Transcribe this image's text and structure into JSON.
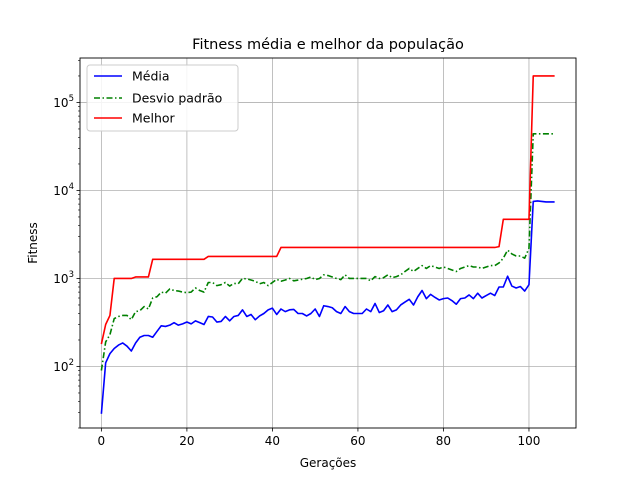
{
  "chart_data": {
    "type": "line",
    "title": "Fitness média e melhor da população",
    "xlabel": "Gerações",
    "ylabel": "Fitness",
    "xlim": [
      -5,
      111
    ],
    "ylim": [
      20,
      320000
    ],
    "yscale": "log",
    "grid": true,
    "legend_position": "top-left",
    "x_ticks": [
      0,
      20,
      40,
      60,
      80,
      100
    ],
    "y_ticks": [
      {
        "value": 100,
        "base": "10",
        "exp": "2"
      },
      {
        "value": 1000,
        "base": "10",
        "exp": "3"
      },
      {
        "value": 10000,
        "base": "10",
        "exp": "4"
      },
      {
        "value": 100000,
        "base": "10",
        "exp": "5"
      }
    ],
    "series": [
      {
        "name": "Média",
        "color": "#0000ff",
        "style": "solid",
        "points": [
          [
            0,
            29
          ],
          [
            1,
            110
          ],
          [
            2,
            140
          ],
          [
            3,
            160
          ],
          [
            4,
            175
          ],
          [
            5,
            185
          ],
          [
            6,
            170
          ],
          [
            7,
            150
          ],
          [
            8,
            185
          ],
          [
            9,
            215
          ],
          [
            10,
            225
          ],
          [
            11,
            225
          ],
          [
            12,
            215
          ],
          [
            13,
            250
          ],
          [
            14,
            290
          ],
          [
            15,
            285
          ],
          [
            16,
            295
          ],
          [
            17,
            315
          ],
          [
            18,
            295
          ],
          [
            19,
            305
          ],
          [
            20,
            320
          ],
          [
            21,
            305
          ],
          [
            22,
            330
          ],
          [
            23,
            315
          ],
          [
            24,
            300
          ],
          [
            25,
            370
          ],
          [
            26,
            365
          ],
          [
            27,
            320
          ],
          [
            28,
            325
          ],
          [
            29,
            370
          ],
          [
            30,
            330
          ],
          [
            31,
            370
          ],
          [
            32,
            380
          ],
          [
            33,
            440
          ],
          [
            34,
            370
          ],
          [
            35,
            390
          ],
          [
            36,
            340
          ],
          [
            37,
            375
          ],
          [
            38,
            400
          ],
          [
            39,
            440
          ],
          [
            40,
            460
          ],
          [
            41,
            390
          ],
          [
            42,
            450
          ],
          [
            43,
            420
          ],
          [
            44,
            440
          ],
          [
            45,
            445
          ],
          [
            46,
            400
          ],
          [
            47,
            400
          ],
          [
            48,
            375
          ],
          [
            49,
            400
          ],
          [
            50,
            450
          ],
          [
            51,
            370
          ],
          [
            52,
            490
          ],
          [
            53,
            480
          ],
          [
            54,
            465
          ],
          [
            55,
            420
          ],
          [
            56,
            400
          ],
          [
            57,
            480
          ],
          [
            58,
            420
          ],
          [
            59,
            400
          ],
          [
            60,
            400
          ],
          [
            61,
            400
          ],
          [
            62,
            450
          ],
          [
            63,
            420
          ],
          [
            64,
            520
          ],
          [
            65,
            410
          ],
          [
            66,
            430
          ],
          [
            67,
            500
          ],
          [
            68,
            420
          ],
          [
            69,
            440
          ],
          [
            70,
            500
          ],
          [
            71,
            540
          ],
          [
            72,
            580
          ],
          [
            73,
            500
          ],
          [
            74,
            620
          ],
          [
            75,
            730
          ],
          [
            76,
            590
          ],
          [
            77,
            660
          ],
          [
            78,
            610
          ],
          [
            79,
            570
          ],
          [
            80,
            590
          ],
          [
            81,
            600
          ],
          [
            82,
            560
          ],
          [
            83,
            510
          ],
          [
            84,
            590
          ],
          [
            85,
            600
          ],
          [
            86,
            650
          ],
          [
            87,
            590
          ],
          [
            88,
            680
          ],
          [
            89,
            600
          ],
          [
            90,
            640
          ],
          [
            91,
            680
          ],
          [
            92,
            640
          ],
          [
            93,
            800
          ],
          [
            94,
            800
          ],
          [
            95,
            1060
          ],
          [
            96,
            820
          ],
          [
            97,
            780
          ],
          [
            98,
            810
          ],
          [
            99,
            720
          ],
          [
            100,
            850
          ],
          [
            101,
            7500
          ],
          [
            102,
            7600
          ],
          [
            103,
            7500
          ],
          [
            104,
            7400
          ],
          [
            105,
            7400
          ],
          [
            106,
            7400
          ]
        ]
      },
      {
        "name": "Desvio padrão",
        "color": "#008000",
        "style": "dashdot",
        "points": [
          [
            0,
            90
          ],
          [
            1,
            190
          ],
          [
            2,
            230
          ],
          [
            3,
            350
          ],
          [
            4,
            370
          ],
          [
            5,
            380
          ],
          [
            6,
            380
          ],
          [
            7,
            340
          ],
          [
            8,
            420
          ],
          [
            9,
            430
          ],
          [
            10,
            480
          ],
          [
            11,
            450
          ],
          [
            12,
            600
          ],
          [
            13,
            620
          ],
          [
            14,
            700
          ],
          [
            15,
            680
          ],
          [
            16,
            760
          ],
          [
            17,
            730
          ],
          [
            18,
            720
          ],
          [
            19,
            700
          ],
          [
            20,
            690
          ],
          [
            21,
            700
          ],
          [
            22,
            780
          ],
          [
            23,
            730
          ],
          [
            24,
            700
          ],
          [
            25,
            900
          ],
          [
            26,
            900
          ],
          [
            27,
            830
          ],
          [
            28,
            850
          ],
          [
            29,
            900
          ],
          [
            30,
            820
          ],
          [
            31,
            880
          ],
          [
            32,
            870
          ],
          [
            33,
            1000
          ],
          [
            34,
            990
          ],
          [
            35,
            960
          ],
          [
            36,
            930
          ],
          [
            37,
            870
          ],
          [
            38,
            900
          ],
          [
            39,
            830
          ],
          [
            40,
            900
          ],
          [
            41,
            980
          ],
          [
            42,
            930
          ],
          [
            43,
            960
          ],
          [
            44,
            1000
          ],
          [
            45,
            940
          ],
          [
            46,
            960
          ],
          [
            47,
            980
          ],
          [
            48,
            1000
          ],
          [
            49,
            1040
          ],
          [
            50,
            970
          ],
          [
            51,
            1000
          ],
          [
            52,
            1100
          ],
          [
            53,
            1080
          ],
          [
            54,
            1040
          ],
          [
            55,
            1000
          ],
          [
            56,
            970
          ],
          [
            57,
            1100
          ],
          [
            58,
            1000
          ],
          [
            59,
            1000
          ],
          [
            60,
            1000
          ],
          [
            61,
            1000
          ],
          [
            62,
            1000
          ],
          [
            63,
            940
          ],
          [
            64,
            1050
          ],
          [
            65,
            1000
          ],
          [
            66,
            1020
          ],
          [
            67,
            1100
          ],
          [
            68,
            1020
          ],
          [
            69,
            1050
          ],
          [
            70,
            1100
          ],
          [
            71,
            1200
          ],
          [
            72,
            1300
          ],
          [
            73,
            1200
          ],
          [
            74,
            1300
          ],
          [
            75,
            1400
          ],
          [
            76,
            1300
          ],
          [
            77,
            1400
          ],
          [
            78,
            1350
          ],
          [
            79,
            1300
          ],
          [
            80,
            1350
          ],
          [
            81,
            1300
          ],
          [
            82,
            1250
          ],
          [
            83,
            1200
          ],
          [
            84,
            1300
          ],
          [
            85,
            1350
          ],
          [
            86,
            1400
          ],
          [
            87,
            1350
          ],
          [
            88,
            1350
          ],
          [
            89,
            1300
          ],
          [
            90,
            1350
          ],
          [
            91,
            1400
          ],
          [
            92,
            1400
          ],
          [
            93,
            1500
          ],
          [
            94,
            1700
          ],
          [
            95,
            2100
          ],
          [
            96,
            1900
          ],
          [
            97,
            1800
          ],
          [
            98,
            1800
          ],
          [
            99,
            1700
          ],
          [
            100,
            2200
          ],
          [
            101,
            44000
          ],
          [
            102,
            44000
          ],
          [
            103,
            44000
          ],
          [
            104,
            44000
          ],
          [
            105,
            44000
          ],
          [
            106,
            44000
          ]
        ]
      },
      {
        "name": "Melhor",
        "color": "#ff0000",
        "style": "solid",
        "points": [
          [
            0,
            180
          ],
          [
            1,
            300
          ],
          [
            2,
            380
          ],
          [
            3,
            1000
          ],
          [
            4,
            1000
          ],
          [
            5,
            1000
          ],
          [
            6,
            1000
          ],
          [
            7,
            1000
          ],
          [
            8,
            1040
          ],
          [
            9,
            1040
          ],
          [
            10,
            1040
          ],
          [
            11,
            1040
          ],
          [
            12,
            1650
          ],
          [
            13,
            1650
          ],
          [
            14,
            1650
          ],
          [
            15,
            1650
          ],
          [
            16,
            1650
          ],
          [
            17,
            1650
          ],
          [
            18,
            1650
          ],
          [
            19,
            1650
          ],
          [
            20,
            1650
          ],
          [
            21,
            1650
          ],
          [
            22,
            1650
          ],
          [
            23,
            1650
          ],
          [
            24,
            1650
          ],
          [
            25,
            1780
          ],
          [
            26,
            1780
          ],
          [
            27,
            1780
          ],
          [
            28,
            1780
          ],
          [
            29,
            1780
          ],
          [
            30,
            1780
          ],
          [
            31,
            1780
          ],
          [
            32,
            1780
          ],
          [
            33,
            1780
          ],
          [
            34,
            1780
          ],
          [
            35,
            1780
          ],
          [
            36,
            1780
          ],
          [
            37,
            1780
          ],
          [
            38,
            1780
          ],
          [
            39,
            1780
          ],
          [
            40,
            1780
          ],
          [
            41,
            1780
          ],
          [
            42,
            2250
          ],
          [
            43,
            2250
          ],
          [
            44,
            2250
          ],
          [
            45,
            2250
          ],
          [
            46,
            2250
          ],
          [
            47,
            2250
          ],
          [
            48,
            2250
          ],
          [
            49,
            2250
          ],
          [
            50,
            2250
          ],
          [
            51,
            2250
          ],
          [
            52,
            2250
          ],
          [
            53,
            2250
          ],
          [
            54,
            2250
          ],
          [
            55,
            2250
          ],
          [
            56,
            2250
          ],
          [
            57,
            2250
          ],
          [
            58,
            2250
          ],
          [
            59,
            2250
          ],
          [
            60,
            2250
          ],
          [
            61,
            2250
          ],
          [
            62,
            2250
          ],
          [
            63,
            2250
          ],
          [
            64,
            2250
          ],
          [
            65,
            2250
          ],
          [
            66,
            2250
          ],
          [
            67,
            2250
          ],
          [
            68,
            2250
          ],
          [
            69,
            2250
          ],
          [
            70,
            2250
          ],
          [
            71,
            2250
          ],
          [
            72,
            2250
          ],
          [
            73,
            2250
          ],
          [
            74,
            2250
          ],
          [
            75,
            2250
          ],
          [
            76,
            2250
          ],
          [
            77,
            2250
          ],
          [
            78,
            2250
          ],
          [
            79,
            2250
          ],
          [
            80,
            2250
          ],
          [
            81,
            2250
          ],
          [
            82,
            2250
          ],
          [
            83,
            2250
          ],
          [
            84,
            2250
          ],
          [
            85,
            2250
          ],
          [
            86,
            2250
          ],
          [
            87,
            2250
          ],
          [
            88,
            2250
          ],
          [
            89,
            2250
          ],
          [
            90,
            2250
          ],
          [
            91,
            2250
          ],
          [
            92,
            2250
          ],
          [
            93,
            2300
          ],
          [
            94,
            4700
          ],
          [
            95,
            4700
          ],
          [
            96,
            4700
          ],
          [
            97,
            4700
          ],
          [
            98,
            4700
          ],
          [
            99,
            4700
          ],
          [
            100,
            4700
          ],
          [
            101,
            200000
          ],
          [
            102,
            200000
          ],
          [
            103,
            200000
          ],
          [
            104,
            200000
          ],
          [
            105,
            200000
          ],
          [
            106,
            200000
          ]
        ]
      }
    ]
  }
}
